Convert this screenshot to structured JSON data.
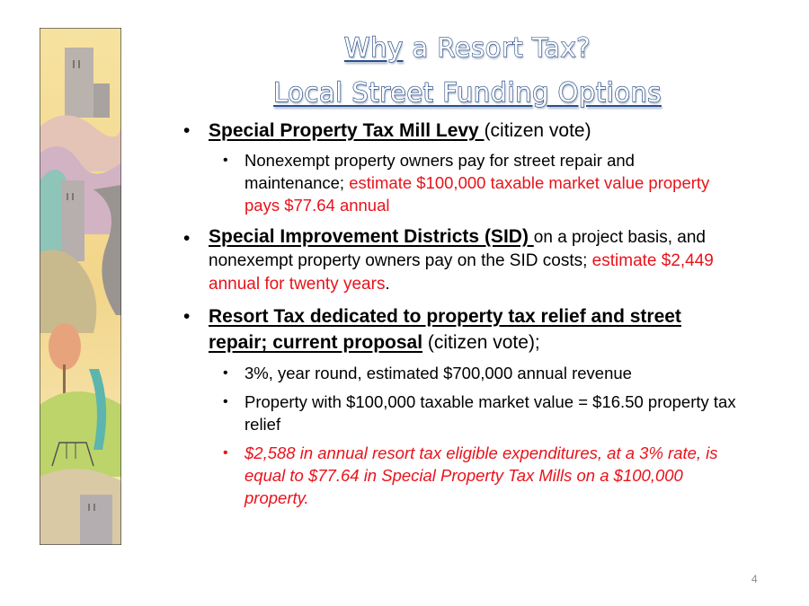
{
  "title": {
    "line1_underlined": "Why",
    "line1_rest": " a Resort Tax?",
    "line2": "Local Street Funding Options"
  },
  "bullets": [
    {
      "heading": "Special Property Tax Mill Levy ",
      "tail": "(citizen vote)",
      "sub": [
        {
          "text": "Nonexempt property owners pay for street repair and maintenance; ",
          "red": "estimate $100,000 taxable market value property pays $77.64 annual"
        }
      ]
    },
    {
      "heading": "Special Improvement Districts (SID) ",
      "tail": "on a project basis, and nonexempt property owners pay on the SID costs; ",
      "red": "estimate $2,449 annual for twenty years",
      "end": "."
    },
    {
      "heading": "Resort Tax dedicated to property tax relief and street repair; current proposal",
      "tail": " (citizen vote);",
      "sub": [
        {
          "text": "3%, year round, estimated $700,000 annual revenue"
        },
        {
          "text": "Property with $100,000 taxable market value = $16.50 property tax relief"
        },
        {
          "red_italic": "$2,588 in annual resort tax eligible expenditures, at a 3% rate, is equal to $77.64 in Special Property Tax Mills on a $100,000 property."
        }
      ]
    }
  ],
  "page_number": "4",
  "colors": {
    "title_outline": "#2a4f8a",
    "highlight": "#e8131b"
  }
}
